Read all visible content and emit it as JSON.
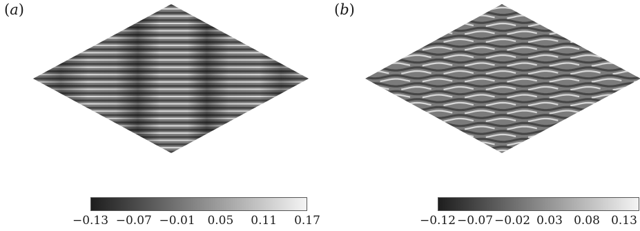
{
  "panels": [
    {
      "label": "a",
      "colorbar": {
        "ticks": [
          "−0.13",
          "−0.07",
          "−0.01",
          "0.05",
          "0.11",
          "0.17"
        ],
        "min": -0.13,
        "max": 0.17
      }
    },
    {
      "label": "b",
      "colorbar": {
        "ticks": [
          "−0.12",
          "−0.07",
          "−0.02",
          "0.03",
          "0.08",
          "0.13"
        ],
        "min": -0.12,
        "max": 0.13
      }
    }
  ],
  "colormap": {
    "low": "#1e1e1e",
    "high": "#f4f4f4"
  }
}
